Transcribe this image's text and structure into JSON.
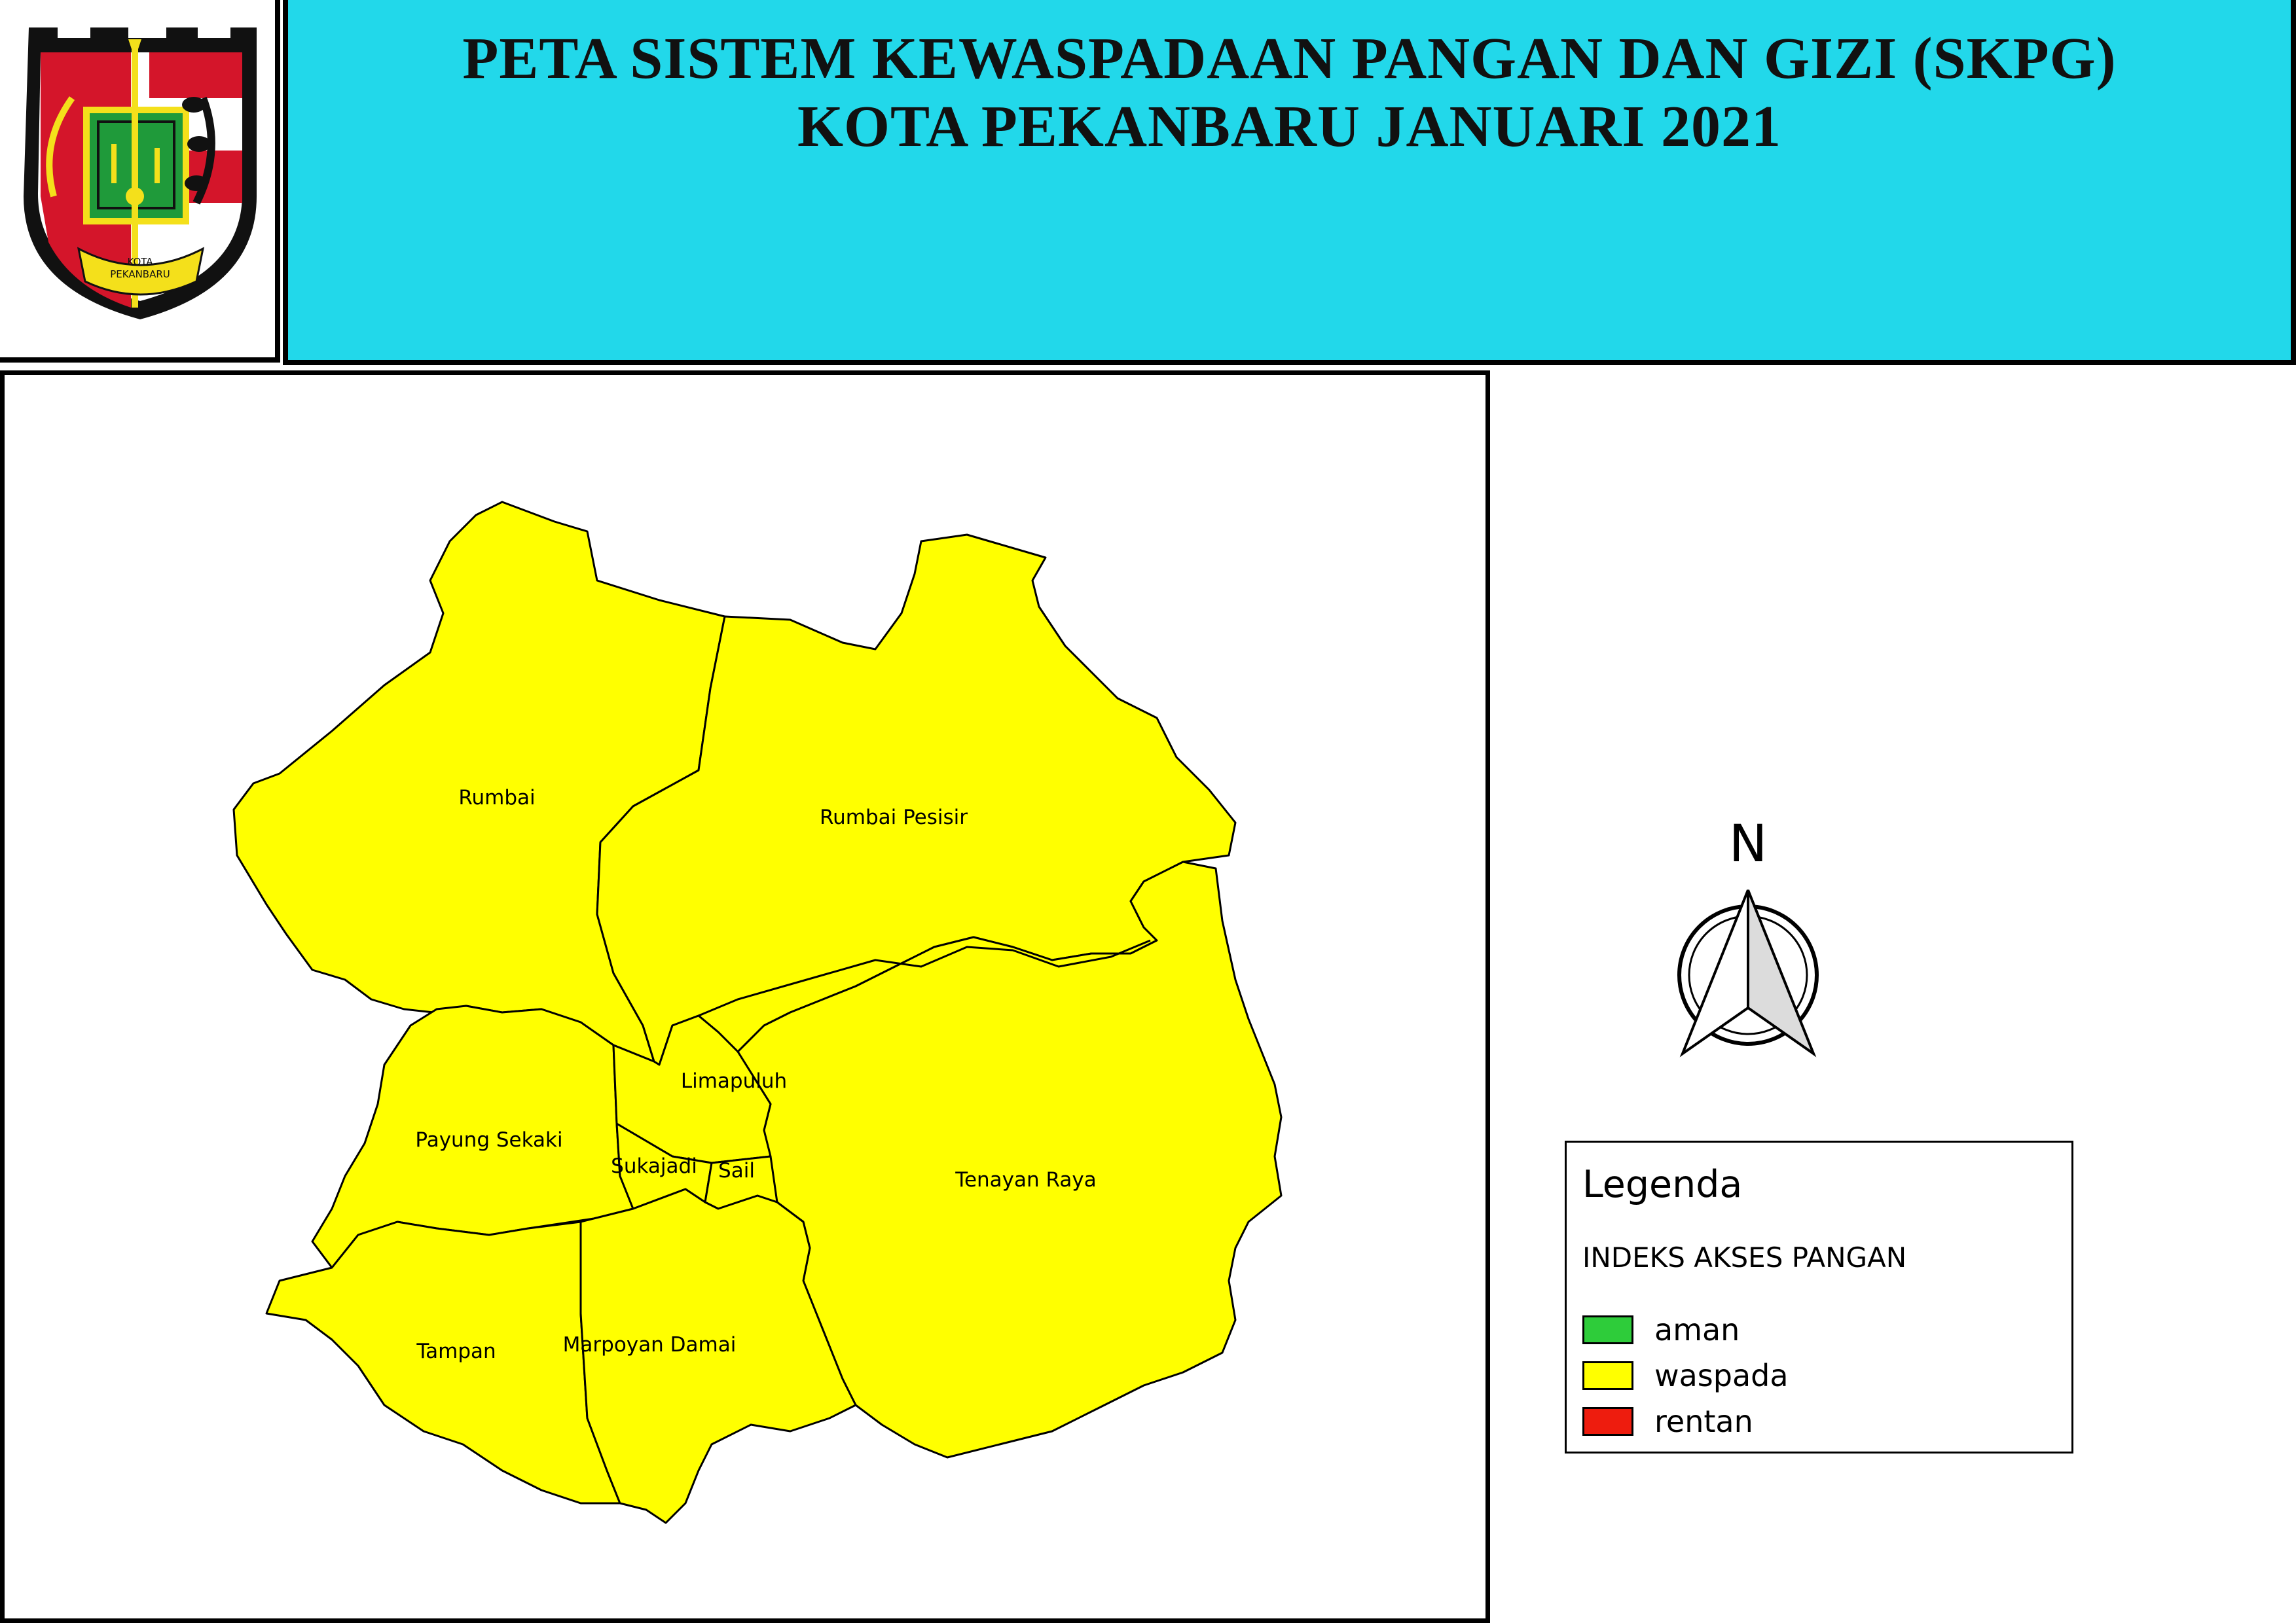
{
  "header": {
    "title_line1": "PETA SISTEM KEWASPADAAN PANGAN DAN GIZI (SKPG)",
    "title_line2": "KOTA PEKANBARU JANUARI 2021"
  },
  "logo": {
    "text_line1": "KOTA",
    "text_line2": "PEKANBARU"
  },
  "map": {
    "districts": [
      {
        "name": "Rumbai",
        "category": "waspada"
      },
      {
        "name": "Rumbai Pesisir",
        "category": "waspada"
      },
      {
        "name": "Limapuluh",
        "category": "waspada"
      },
      {
        "name": "Payung Sekaki",
        "category": "waspada"
      },
      {
        "name": "Sukajadi",
        "category": "waspada"
      },
      {
        "name": "Sail",
        "category": "waspada"
      },
      {
        "name": "Tenayan Raya",
        "category": "waspada"
      },
      {
        "name": "Tampan",
        "category": "waspada"
      },
      {
        "name": "Marpoyan Damai",
        "category": "waspada"
      }
    ]
  },
  "north_arrow": {
    "letter": "N"
  },
  "legend": {
    "title": "Legenda",
    "subtitle": "INDEKS AKSES PANGAN",
    "items": [
      {
        "label": "aman",
        "color": "#2ecc3a"
      },
      {
        "label": "waspada",
        "color": "#ffff00"
      },
      {
        "label": "rentan",
        "color": "#ee1c0e"
      }
    ]
  },
  "colors": {
    "header_background": "#22d8ea",
    "district_fill": "#ffff00"
  }
}
